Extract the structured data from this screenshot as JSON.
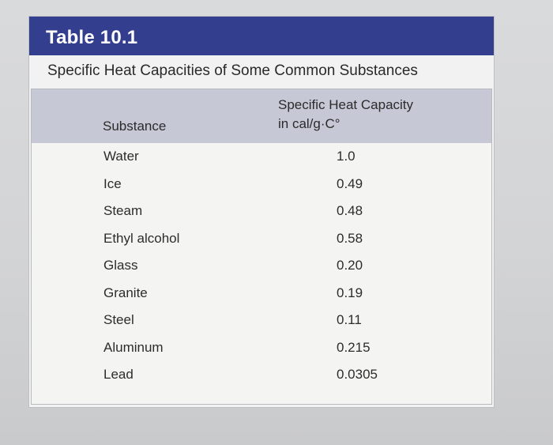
{
  "table": {
    "title": "Table 10.1",
    "caption": "Specific Heat Capacities of Some Common Substances",
    "columns": {
      "substance": "Substance",
      "capacity_line1": "Specific Heat Capacity",
      "capacity_line2": "in cal/g·C°"
    },
    "rows": [
      {
        "substance": "Water",
        "value": "1.0"
      },
      {
        "substance": "Ice",
        "value": "0.49"
      },
      {
        "substance": "Steam",
        "value": "0.48"
      },
      {
        "substance": "Ethyl alcohol",
        "value": "0.58"
      },
      {
        "substance": "Glass",
        "value": "0.20"
      },
      {
        "substance": "Granite",
        "value": "0.19"
      },
      {
        "substance": "Steel",
        "value": "0.11"
      },
      {
        "substance": "Aluminum",
        "value": "0.215"
      },
      {
        "substance": "Lead",
        "value": "0.0305"
      }
    ]
  },
  "colors": {
    "title_bar": "#333f8e",
    "header_band": "#c6c8d6",
    "card": "#f1f2f1",
    "background": "#d6d7d9"
  }
}
